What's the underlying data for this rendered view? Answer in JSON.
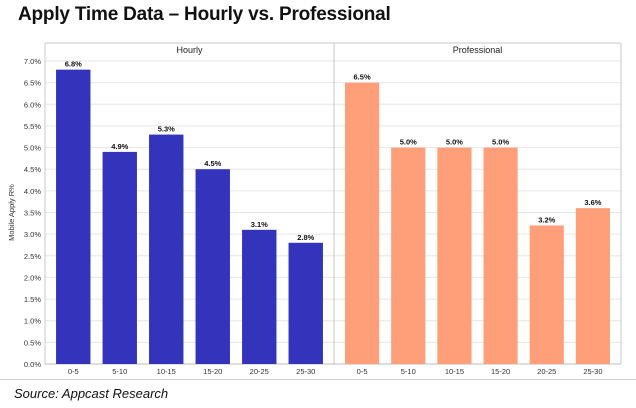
{
  "title": "Apply Time Data – Hourly vs. Professional",
  "source": "Source: Appcast Research",
  "chart_data": [
    {
      "type": "bar",
      "panel_label": "Hourly",
      "categories": [
        "0-5",
        "5-10",
        "10-15",
        "15-20",
        "20-25",
        "25-30"
      ],
      "values": [
        6.8,
        4.9,
        5.3,
        4.5,
        3.1,
        2.8
      ],
      "data_labels": [
        "6.8%",
        "4.9%",
        "5.3%",
        "4.5%",
        "3.1%",
        "2.8%"
      ],
      "ylabel": "Mobile Apply R%",
      "ylim": [
        0,
        7.0
      ],
      "yticks": [
        "0.0%",
        "0.5%",
        "1.0%",
        "1.5%",
        "2.0%",
        "2.5%",
        "3.0%",
        "3.5%",
        "4.0%",
        "4.5%",
        "5.0%",
        "5.5%",
        "6.0%",
        "6.5%",
        "7.0%"
      ],
      "color": "#3333bb"
    },
    {
      "type": "bar",
      "panel_label": "Professional",
      "categories": [
        "0-5",
        "5-10",
        "10-15",
        "15-20",
        "20-25",
        "25-30"
      ],
      "values": [
        6.5,
        5.0,
        5.0,
        5.0,
        3.2,
        3.6
      ],
      "data_labels": [
        "6.5%",
        "5.0%",
        "5.0%",
        "5.0%",
        "3.2%",
        "3.6%"
      ],
      "ylim": [
        0,
        7.0
      ],
      "color": "#ff9f7a"
    }
  ]
}
